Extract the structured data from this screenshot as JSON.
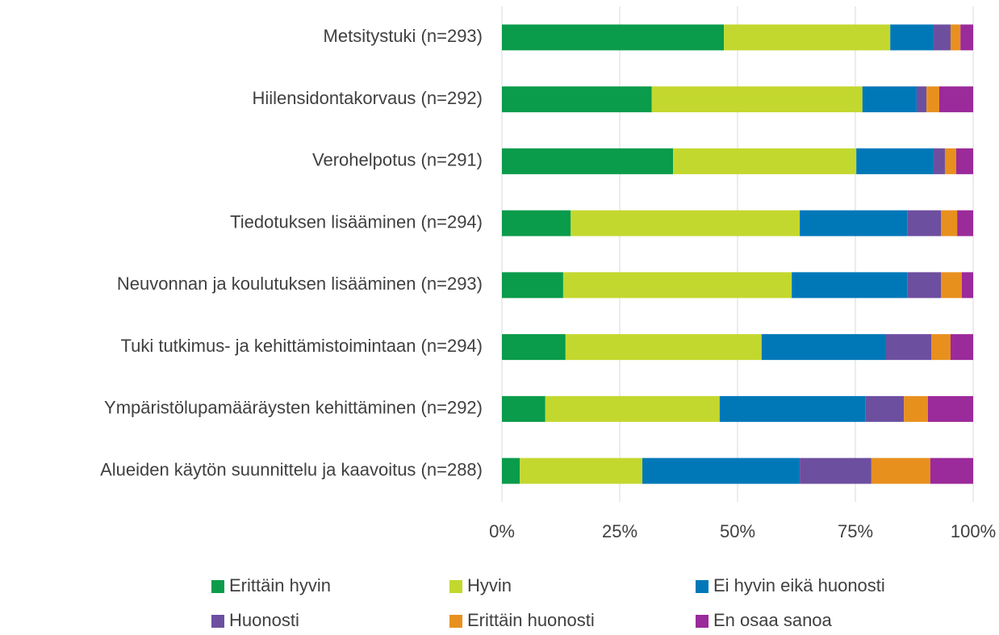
{
  "chart_data": {
    "type": "stacked-bar-horizontal",
    "categories": [
      "Metsitystuki (n=293)",
      "Hiilensidontakorvaus (n=292)",
      "Verohelpotus (n=291)",
      "Tiedotuksen lisääminen (n=294)",
      "Neuvonnan ja koulutuksen lisääminen (n=293)",
      "Tuki tutkimus- ja kehittämistoimintaan (n=294)",
      "Ympäristölupamääräysten kehittäminen (n=292)",
      "Alueiden käytön suunnittelu ja kaavoitus (n=288)"
    ],
    "series": [
      {
        "name": "Erittäin hyvin",
        "color": "#0a9b4b",
        "values": [
          47.1,
          31.8,
          36.3,
          14.6,
          13.0,
          13.5,
          9.2,
          3.8
        ]
      },
      {
        "name": "Hyvin",
        "color": "#c3d82e",
        "values": [
          35.3,
          44.7,
          38.9,
          48.6,
          48.5,
          41.6,
          37.0,
          26.0
        ]
      },
      {
        "name": "Ei hyvin eikä huonosti",
        "color": "#0078b8",
        "values": [
          9.2,
          11.5,
          16.4,
          22.8,
          24.5,
          26.4,
          30.9,
          33.4
        ]
      },
      {
        "name": "Huonosti",
        "color": "#6d4fa0",
        "values": [
          3.6,
          2.1,
          2.4,
          7.2,
          7.2,
          9.6,
          8.2,
          15.2
        ]
      },
      {
        "name": "Erittäin huonosti",
        "color": "#e8901e",
        "values": [
          2.1,
          2.7,
          2.4,
          3.4,
          4.4,
          4.1,
          5.1,
          12.5
        ]
      },
      {
        "name": "En osaa sanoa",
        "color": "#9b2a9a",
        "values": [
          2.7,
          7.2,
          3.6,
          3.4,
          2.4,
          4.8,
          9.6,
          9.1
        ]
      }
    ],
    "xlim": [
      0,
      100
    ],
    "xticks": [
      {
        "value": 0,
        "label": "0%"
      },
      {
        "value": 25,
        "label": "25%"
      },
      {
        "value": 50,
        "label": "50%"
      },
      {
        "value": 75,
        "label": "75%"
      },
      {
        "value": 100,
        "label": "100%"
      }
    ],
    "grid": true
  }
}
